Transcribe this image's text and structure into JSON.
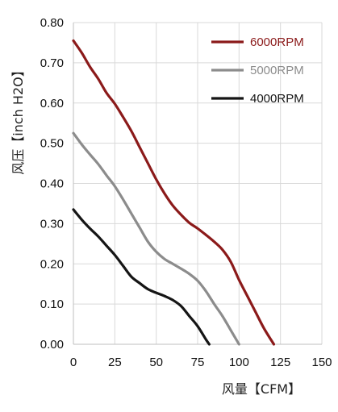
{
  "chart_data": {
    "type": "line",
    "xlabel": "风量【CFM】",
    "ylabel": "风压【inch H2O】",
    "xlim": [
      0,
      150
    ],
    "ylim": [
      0,
      0.8
    ],
    "xticks": [
      "0",
      "25",
      "50",
      "75",
      "100",
      "125",
      "150"
    ],
    "yticks": [
      "0.00",
      "0.10",
      "0.20",
      "0.30",
      "0.40",
      "0.50",
      "0.60",
      "0.70",
      "0.80"
    ],
    "grid": true,
    "legend_position": "top-right",
    "series": [
      {
        "name": "6000RPM",
        "color": "#8b1a1a",
        "points": [
          [
            0,
            0.755
          ],
          [
            5,
            0.725
          ],
          [
            10,
            0.69
          ],
          [
            15,
            0.66
          ],
          [
            20,
            0.625
          ],
          [
            25,
            0.598
          ],
          [
            30,
            0.565
          ],
          [
            35,
            0.53
          ],
          [
            40,
            0.49
          ],
          [
            45,
            0.45
          ],
          [
            50,
            0.41
          ],
          [
            55,
            0.375
          ],
          [
            60,
            0.345
          ],
          [
            65,
            0.322
          ],
          [
            70,
            0.302
          ],
          [
            75,
            0.288
          ],
          [
            80,
            0.272
          ],
          [
            85,
            0.255
          ],
          [
            90,
            0.235
          ],
          [
            95,
            0.205
          ],
          [
            100,
            0.16
          ],
          [
            105,
            0.12
          ],
          [
            110,
            0.08
          ],
          [
            115,
            0.04
          ],
          [
            121,
            0.0
          ]
        ]
      },
      {
        "name": "5000RPM",
        "color": "#8c8c8c",
        "points": [
          [
            0,
            0.525
          ],
          [
            5,
            0.497
          ],
          [
            10,
            0.472
          ],
          [
            15,
            0.448
          ],
          [
            20,
            0.42
          ],
          [
            25,
            0.393
          ],
          [
            30,
            0.36
          ],
          [
            35,
            0.325
          ],
          [
            40,
            0.29
          ],
          [
            45,
            0.255
          ],
          [
            50,
            0.23
          ],
          [
            55,
            0.212
          ],
          [
            60,
            0.2
          ],
          [
            65,
            0.188
          ],
          [
            70,
            0.175
          ],
          [
            75,
            0.158
          ],
          [
            80,
            0.132
          ],
          [
            85,
            0.1
          ],
          [
            90,
            0.07
          ],
          [
            95,
            0.035
          ],
          [
            100,
            0.0
          ]
        ]
      },
      {
        "name": "4000RPM",
        "color": "#151515",
        "points": [
          [
            0,
            0.335
          ],
          [
            5,
            0.31
          ],
          [
            10,
            0.288
          ],
          [
            15,
            0.268
          ],
          [
            20,
            0.245
          ],
          [
            25,
            0.222
          ],
          [
            30,
            0.195
          ],
          [
            35,
            0.168
          ],
          [
            40,
            0.152
          ],
          [
            45,
            0.137
          ],
          [
            50,
            0.128
          ],
          [
            55,
            0.12
          ],
          [
            60,
            0.11
          ],
          [
            65,
            0.095
          ],
          [
            70,
            0.07
          ],
          [
            75,
            0.045
          ],
          [
            80,
            0.012
          ],
          [
            82,
            0.0
          ]
        ]
      }
    ]
  }
}
